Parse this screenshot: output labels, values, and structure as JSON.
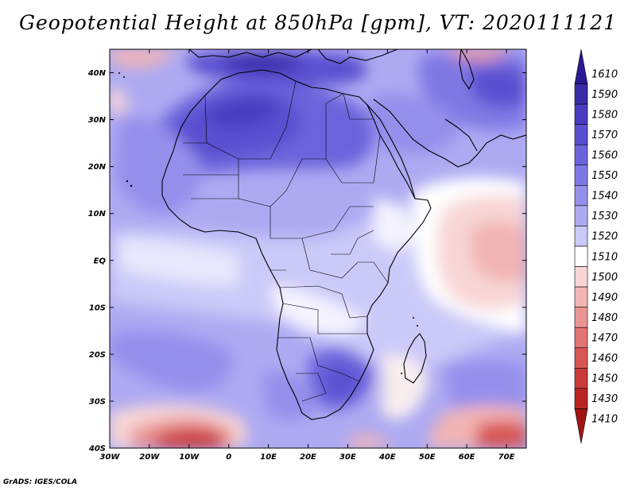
{
  "title": "Geopotential Height at 850hPa [gpm], VT: 2020111121",
  "credit": "GrADS: IGES/COLA",
  "map": {
    "variable": "Geopotential Height at 850hPa",
    "units": "gpm",
    "valid_time": "2020111121",
    "lon_range": [
      -30,
      75
    ],
    "lat_range": [
      -40,
      45
    ],
    "lat_ticks": [
      {
        "value": 40,
        "label": "40N"
      },
      {
        "value": 30,
        "label": "30N"
      },
      {
        "value": 20,
        "label": "20N"
      },
      {
        "value": 10,
        "label": "10N"
      },
      {
        "value": 0,
        "label": "EQ"
      },
      {
        "value": -10,
        "label": "10S"
      },
      {
        "value": -20,
        "label": "20S"
      },
      {
        "value": -30,
        "label": "30S"
      },
      {
        "value": -40,
        "label": "40S"
      }
    ],
    "lon_ticks": [
      {
        "value": -30,
        "label": "30W"
      },
      {
        "value": -20,
        "label": "20W"
      },
      {
        "value": -10,
        "label": "10W"
      },
      {
        "value": 0,
        "label": "0"
      },
      {
        "value": 10,
        "label": "10E"
      },
      {
        "value": 20,
        "label": "20E"
      },
      {
        "value": 30,
        "label": "30E"
      },
      {
        "value": 40,
        "label": "40E"
      },
      {
        "value": 50,
        "label": "50E"
      },
      {
        "value": 60,
        "label": "60E"
      },
      {
        "value": 70,
        "label": "70E"
      }
    ]
  },
  "colorbar": {
    "levels": [
      {
        "label": "1610",
        "color": "#2b1a94"
      },
      {
        "label": "1590",
        "color": "#3a2ba8"
      },
      {
        "label": "1580",
        "color": "#4a3cc0"
      },
      {
        "label": "1570",
        "color": "#5a4fd0"
      },
      {
        "label": "1560",
        "color": "#6c63dc"
      },
      {
        "label": "1550",
        "color": "#7f78e4"
      },
      {
        "label": "1540",
        "color": "#958fec"
      },
      {
        "label": "1530",
        "color": "#aeaaf2"
      },
      {
        "label": "1520",
        "color": "#cbc9f8"
      },
      {
        "label": "1510",
        "color": "#ffffff"
      },
      {
        "label": "1500",
        "color": "#f8d6d6"
      },
      {
        "label": "1490",
        "color": "#f2b4b4"
      },
      {
        "label": "1480",
        "color": "#ea9494"
      },
      {
        "label": "1470",
        "color": "#e27474"
      },
      {
        "label": "1460",
        "color": "#d85656"
      },
      {
        "label": "1450",
        "color": "#cc3a3a"
      },
      {
        "label": "1430",
        "color": "#bb2424"
      },
      {
        "label": "1410",
        "color": "#a01414"
      }
    ]
  }
}
